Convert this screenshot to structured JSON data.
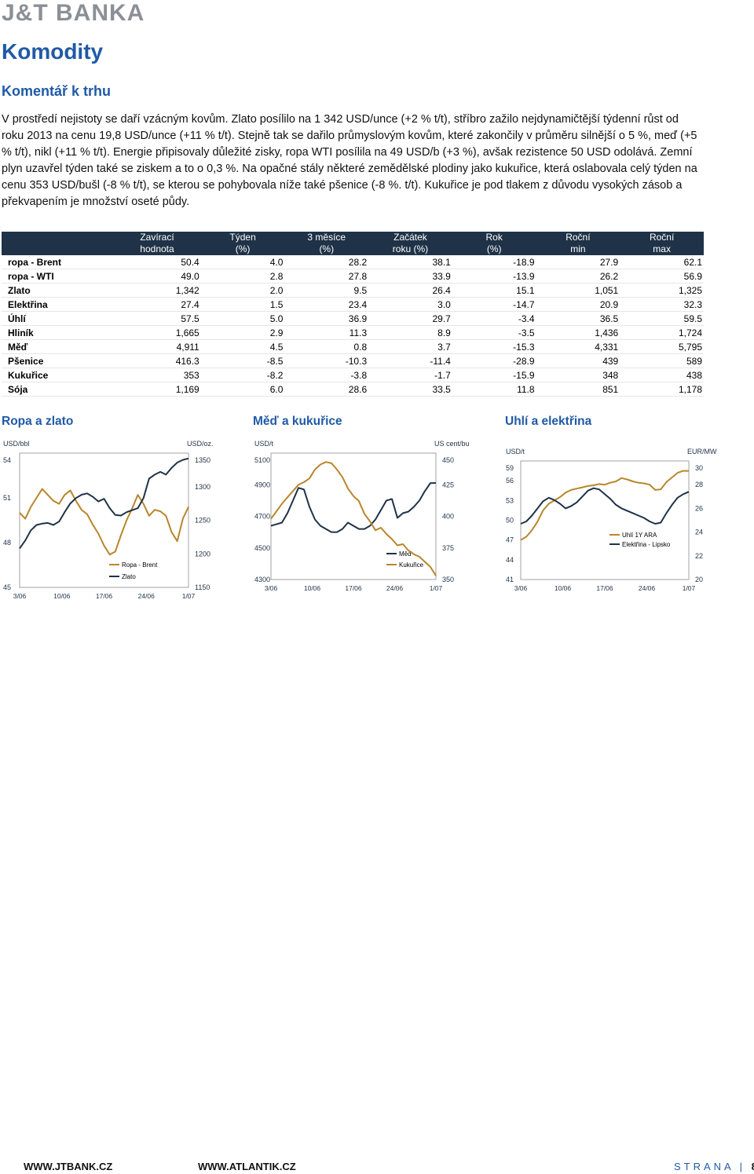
{
  "header": {
    "logo_text": "J&T BANKA"
  },
  "page_title": "Komodity",
  "section_title": "Komentář k trhu",
  "commentary": "V prostředí nejistoty se daří vzácným kovům. Zlato posílilo na 1 342 USD/unce (+2 % t/t), stříbro zažilo nejdynamičtější týdenní růst od roku 2013 na cenu 19,8 USD/unce (+11 % t/t). Stejně tak se dařilo průmyslovým kovům, které zakončily v průměru silnější o 5 %, meď (+5 % t/t), nikl (+11 % t/t). Energie připisovaly důležité zisky, ropa WTI posílila na 49 USD/b (+3 %), avšak rezistence 50 USD odolává. Zemní plyn uzavřel týden také se ziskem a to o 0,3 %. Na opačné stály některé zemědělské plodiny jako kukuřice, která oslabovala celý týden na cenu 353 USD/bušl (-8 % t/t), se kterou se pohybovala níže také pšenice (-8 %. t/t). Kukuřice je pod tlakem z důvodu vysokých zásob a překvapením je množství oseté půdy.",
  "table": {
    "headers": [
      {
        "l1": "",
        "l2": ""
      },
      {
        "l1": "Zavírací",
        "l2": "hodnota"
      },
      {
        "l1": "Týden",
        "l2": "(%)"
      },
      {
        "l1": "3 měsíce",
        "l2": "(%)"
      },
      {
        "l1": "Začátek",
        "l2": "roku (%)"
      },
      {
        "l1": "Rok",
        "l2": "(%)"
      },
      {
        "l1": "Roční",
        "l2": "min"
      },
      {
        "l1": "Roční",
        "l2": "max"
      }
    ],
    "rows": [
      [
        "ropa - Brent",
        "50.4",
        "4.0",
        "28.2",
        "38.1",
        "-18.9",
        "27.9",
        "62.1"
      ],
      [
        "ropa - WTI",
        "49.0",
        "2.8",
        "27.8",
        "33.9",
        "-13.9",
        "26.2",
        "56.9"
      ],
      [
        "Zlato",
        "1,342",
        "2.0",
        "9.5",
        "26.4",
        "15.1",
        "1,051",
        "1,325"
      ],
      [
        "Elektřina",
        "27.4",
        "1.5",
        "23.4",
        "3.0",
        "-14.7",
        "20.9",
        "32.3"
      ],
      [
        "Úhlí",
        "57.5",
        "5.0",
        "36.9",
        "29.7",
        "-3.4",
        "36.5",
        "59.5"
      ],
      [
        "Hliník",
        "1,665",
        "2.9",
        "11.3",
        "8.9",
        "-3.5",
        "1,436",
        "1,724"
      ],
      [
        "Měď",
        "4,911",
        "4.5",
        "0.8",
        "3.7",
        "-15.3",
        "4,331",
        "5,795"
      ],
      [
        "Pšenice",
        "416.3",
        "-8.5",
        "-10.3",
        "-11.4",
        "-28.9",
        "439",
        "589"
      ],
      [
        "Kukuřice",
        "353",
        "-8.2",
        "-3.8",
        "-1.7",
        "-15.9",
        "348",
        "438"
      ],
      [
        "Sója",
        "1,169",
        "6.0",
        "28.6",
        "33.5",
        "11.8",
        "851",
        "1,178"
      ]
    ]
  },
  "colors": {
    "accent": "#1f5aa6",
    "table_header": "#1f3247",
    "series_gold": "#b8862b",
    "series_navy": "#1f3247"
  },
  "chart_data": [
    {
      "type": "line",
      "title": "Ropa a zlato",
      "x_ticks": [
        "3/06",
        "10/06",
        "17/06",
        "24/06",
        "1/07"
      ],
      "left_axis": {
        "unit": "USD/bbl",
        "ticks": [
          "54",
          "51",
          "48",
          "45"
        ],
        "ylim": [
          45,
          54
        ]
      },
      "right_axis": {
        "unit": "USD/oz.",
        "ticks": [
          "1350",
          "1300",
          "1250",
          "1200",
          "1150"
        ],
        "ylim": [
          1150,
          1350
        ]
      },
      "series": [
        {
          "name": "Ropa - Brent",
          "axis": "left",
          "color": "gold",
          "values": [
            50.0,
            49.6,
            50.4,
            51.0,
            51.6,
            51.2,
            50.8,
            50.6,
            51.2,
            51.5,
            50.8,
            50.2,
            49.9,
            49.2,
            48.6,
            47.8,
            47.2,
            47.4,
            48.5,
            49.5,
            50.3,
            51.2,
            50.6,
            49.8,
            50.2,
            50.1,
            49.8,
            48.7,
            48.1,
            49.6,
            50.4
          ]
        },
        {
          "name": "Zlato",
          "axis": "right",
          "color": "navy",
          "values": [
            1208,
            1220,
            1235,
            1243,
            1245,
            1246,
            1243,
            1248,
            1262,
            1275,
            1283,
            1288,
            1290,
            1285,
            1278,
            1282,
            1268,
            1258,
            1257,
            1262,
            1265,
            1268,
            1283,
            1312,
            1318,
            1322,
            1318,
            1328,
            1336,
            1340,
            1342
          ]
        }
      ]
    },
    {
      "type": "line",
      "title": "Měď a kukuřice",
      "x_ticks": [
        "3/06",
        "10/06",
        "17/06",
        "24/06",
        "1/07"
      ],
      "left_axis": {
        "unit": "USD/t",
        "ticks": [
          "5100",
          "4900",
          "4700",
          "4500",
          "4300"
        ],
        "ylim": [
          4300,
          5100
        ]
      },
      "right_axis": {
        "unit": "US cent/bu",
        "ticks": [
          "450",
          "425",
          "400",
          "375",
          "350"
        ],
        "ylim": [
          350,
          450
        ]
      },
      "series": [
        {
          "name": "Měď",
          "axis": "left",
          "color": "navy",
          "values": [
            4640,
            4650,
            4660,
            4720,
            4800,
            4880,
            4870,
            4760,
            4680,
            4640,
            4620,
            4600,
            4600,
            4620,
            4660,
            4640,
            4620,
            4620,
            4640,
            4680,
            4740,
            4800,
            4810,
            4690,
            4720,
            4730,
            4760,
            4800,
            4860,
            4910,
            4911
          ]
        },
        {
          "name": "Kukuřice",
          "axis": "right",
          "color": "gold",
          "values": [
            398,
            404,
            410,
            415,
            420,
            425,
            427,
            430,
            437,
            441,
            443,
            442,
            437,
            431,
            422,
            416,
            412,
            402,
            396,
            389,
            391,
            386,
            382,
            377,
            378,
            373,
            370,
            368,
            364,
            360,
            353
          ]
        }
      ]
    },
    {
      "type": "line",
      "title": "Uhlí a elektřina",
      "x_ticks": [
        "3/06",
        "10/06",
        "17/06",
        "24/06",
        "1/07"
      ],
      "left_axis": {
        "unit": "USD/t",
        "ticks": [
          "59",
          "56",
          "53",
          "50",
          "47",
          "44",
          "41"
        ],
        "ylim": [
          41,
          59
        ]
      },
      "right_axis": {
        "unit": "EUR/MW",
        "ticks": [
          "30",
          "28",
          "26",
          "24",
          "22",
          "20"
        ],
        "ylim": [
          20,
          30
        ]
      },
      "series": [
        {
          "name": "Uhlí 1Y ARA",
          "axis": "left",
          "color": "gold",
          "values": [
            47.0,
            47.5,
            48.5,
            49.8,
            51.5,
            52.5,
            53.0,
            53.5,
            54.2,
            54.6,
            54.8,
            55.0,
            55.2,
            55.3,
            55.5,
            55.4,
            55.7,
            55.9,
            56.4,
            56.2,
            55.9,
            55.7,
            55.6,
            55.4,
            54.6,
            54.7,
            55.8,
            56.5,
            57.2,
            57.5,
            57.5
          ]
        },
        {
          "name": "Elektřina - Lipsko",
          "axis": "right",
          "color": "navy",
          "values": [
            24.7,
            24.9,
            25.4,
            26.0,
            26.6,
            26.9,
            26.7,
            26.4,
            26.0,
            26.2,
            26.5,
            27.0,
            27.5,
            27.7,
            27.6,
            27.2,
            26.8,
            26.3,
            26.0,
            25.8,
            25.6,
            25.4,
            25.2,
            24.9,
            24.7,
            24.8,
            25.6,
            26.3,
            26.9,
            27.2,
            27.4
          ]
        }
      ]
    }
  ],
  "footer": {
    "left": "WWW.JTBANK.CZ",
    "mid": "WWW.ATLANTIK.CZ",
    "page_label": "STRANA",
    "page_number": "8"
  }
}
